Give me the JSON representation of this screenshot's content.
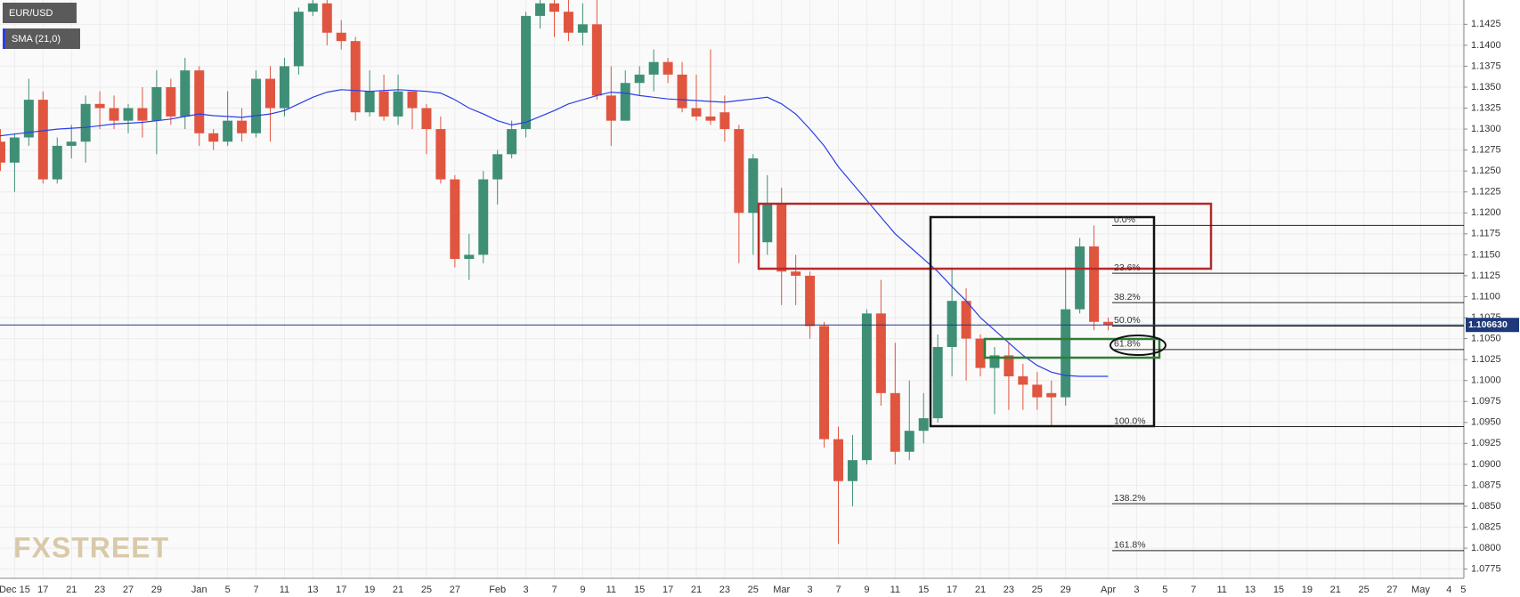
{
  "chart_data": {
    "type": "candlestick",
    "categories": [
      null,
      null,
      "Dec 15",
      null,
      "17",
      null,
      "21",
      null,
      "23",
      null,
      "27",
      null,
      "29",
      null,
      null,
      "Jan",
      null,
      "5",
      null,
      "7",
      null,
      "11",
      null,
      "13",
      null,
      "17",
      null,
      "19",
      null,
      "21",
      null,
      "25",
      null,
      "27",
      null,
      null,
      "Feb",
      null,
      "3",
      null,
      "7",
      null,
      "9",
      null,
      "11",
      null,
      "15",
      null,
      "17",
      null,
      "21",
      null,
      "23",
      null,
      "25",
      null,
      "Mar",
      null,
      "3",
      null,
      "7",
      null,
      "9",
      null,
      "11",
      null,
      "15",
      null,
      "17",
      null,
      "21",
      null,
      "23",
      null,
      "25",
      null,
      "29",
      null,
      null,
      "Apr",
      null,
      "3",
      null,
      "5",
      null,
      "7",
      null,
      "11",
      null,
      "13",
      null,
      "15",
      null,
      "19",
      null,
      "21",
      null,
      "25",
      null,
      "27",
      null,
      "May",
      null,
      "4",
      "5"
    ],
    "series": [
      {
        "name": "EUR/USD",
        "type": "candlestick",
        "up_color": "#3f8f77",
        "down_color": "#e0553f",
        "open": [
          1.13,
          1.1285,
          1.126,
          1.129,
          1.1335,
          1.124,
          1.128,
          1.1285,
          1.133,
          1.1325,
          1.131,
          1.1325,
          1.131,
          1.135,
          1.1315,
          1.137,
          1.1295,
          1.1285,
          1.131,
          1.1295,
          1.136,
          1.1325,
          1.1375,
          1.144,
          1.145,
          1.1415,
          1.1405,
          1.132,
          1.1345,
          1.1315,
          1.1345,
          1.1325,
          1.13,
          1.124,
          1.1145,
          1.115,
          1.124,
          1.127,
          1.13,
          1.1435,
          1.145,
          1.144,
          1.1415,
          1.1425,
          1.134,
          1.131,
          1.1355,
          1.1365,
          1.138,
          1.1365,
          1.1325,
          1.1315,
          1.132,
          1.13,
          1.12,
          1.1165,
          1.121,
          1.113,
          1.1125,
          1.1065,
          1.093,
          1.088,
          1.0905,
          1.108,
          1.0985,
          1.0915,
          1.094,
          1.0955,
          1.104,
          1.1095,
          1.105,
          1.1015,
          1.103,
          1.1005,
          1.0995,
          1.0985,
          1.098,
          1.1085,
          1.116,
          1.107,
          null,
          null,
          null,
          null,
          null,
          null,
          null,
          null,
          null,
          null,
          null,
          null,
          null,
          null,
          null,
          null,
          null,
          null,
          null,
          null,
          null,
          null,
          null,
          null,
          null
        ],
        "high": [
          1.132,
          1.13,
          1.1295,
          1.136,
          1.1345,
          1.129,
          1.1305,
          1.134,
          1.1345,
          1.134,
          1.133,
          1.135,
          1.137,
          1.136,
          1.1385,
          1.1375,
          1.13,
          1.1345,
          1.1325,
          1.137,
          1.1375,
          1.1385,
          1.1445,
          1.1454,
          1.1454,
          1.143,
          1.141,
          1.137,
          1.1365,
          1.1365,
          1.1345,
          1.133,
          1.1315,
          1.1245,
          1.1175,
          1.125,
          1.1275,
          1.131,
          1.144,
          1.1454,
          1.1454,
          1.1454,
          1.145,
          1.1454,
          1.1375,
          1.137,
          1.1375,
          1.1395,
          1.1385,
          1.138,
          1.1365,
          1.1395,
          1.134,
          1.1305,
          1.127,
          1.1245,
          1.123,
          1.115,
          1.113,
          1.107,
          1.0945,
          1.0935,
          1.1085,
          1.112,
          1.1045,
          1.1,
          1.0985,
          1.1055,
          1.1135,
          1.111,
          1.1055,
          1.104,
          1.1045,
          1.102,
          1.101,
          1.1,
          1.1135,
          1.117,
          1.1185,
          1.1075,
          null,
          null,
          null,
          null,
          null,
          null,
          null,
          null,
          null,
          null,
          null,
          null,
          null,
          null,
          null,
          null,
          null,
          null,
          null,
          null,
          null,
          null,
          null,
          null,
          null
        ],
        "low": [
          1.127,
          1.125,
          1.1225,
          1.128,
          1.1235,
          1.1235,
          1.1265,
          1.126,
          1.13,
          1.13,
          1.1295,
          1.129,
          1.127,
          1.1305,
          1.13,
          1.128,
          1.1275,
          1.128,
          1.1285,
          1.129,
          1.1285,
          1.1315,
          1.1365,
          1.1435,
          1.14,
          1.1395,
          1.131,
          1.1315,
          1.131,
          1.1305,
          1.13,
          1.127,
          1.1235,
          1.1135,
          1.112,
          1.114,
          1.121,
          1.1265,
          1.129,
          1.142,
          1.141,
          1.1405,
          1.14,
          1.1335,
          1.128,
          1.131,
          1.134,
          1.1345,
          1.1355,
          1.132,
          1.131,
          1.1305,
          1.1285,
          1.114,
          1.115,
          1.115,
          1.109,
          1.109,
          1.105,
          1.092,
          1.0805,
          1.085,
          1.09,
          1.097,
          1.09,
          1.0905,
          1.0925,
          1.095,
          1.1005,
          1.1,
          1.1005,
          1.096,
          1.0965,
          1.0965,
          1.0965,
          1.0945,
          1.097,
          1.108,
          1.106,
          1.106,
          null,
          null,
          null,
          null,
          null,
          null,
          null,
          null,
          null,
          null,
          null,
          null,
          null,
          null,
          null,
          null,
          null,
          null,
          null,
          null,
          null,
          null,
          null,
          null,
          null
        ],
        "close": [
          1.1285,
          1.126,
          1.129,
          1.1335,
          1.124,
          1.128,
          1.1285,
          1.133,
          1.1325,
          1.131,
          1.1325,
          1.131,
          1.135,
          1.1315,
          1.137,
          1.1295,
          1.1285,
          1.131,
          1.1295,
          1.136,
          1.1325,
          1.1375,
          1.144,
          1.145,
          1.1415,
          1.1405,
          1.132,
          1.1345,
          1.1315,
          1.1345,
          1.1325,
          1.13,
          1.124,
          1.1145,
          1.115,
          1.124,
          1.127,
          1.13,
          1.1435,
          1.145,
          1.144,
          1.1415,
          1.1425,
          1.134,
          1.131,
          1.1355,
          1.1365,
          1.138,
          1.1365,
          1.1325,
          1.1315,
          1.131,
          1.13,
          1.12,
          1.1265,
          1.121,
          1.113,
          1.1125,
          1.1065,
          1.093,
          1.088,
          1.0905,
          1.108,
          1.0985,
          1.0915,
          1.094,
          1.0955,
          1.104,
          1.1095,
          1.105,
          1.1015,
          1.103,
          1.1005,
          1.0995,
          1.098,
          1.098,
          1.1085,
          1.116,
          1.107,
          1.1066,
          null,
          null,
          null,
          null,
          null,
          null,
          null,
          null,
          null,
          null,
          null,
          null,
          null,
          null,
          null,
          null,
          null,
          null,
          null,
          null,
          null,
          null,
          null,
          null,
          null
        ]
      },
      {
        "name": "SMA (21,0)",
        "type": "line",
        "color": "#2a3ee8",
        "values": [
          1.129,
          1.1292,
          1.1294,
          1.1296,
          1.1298,
          1.13,
          1.1301,
          1.1302,
          1.1304,
          1.1306,
          1.1307,
          1.1308,
          1.131,
          1.1312,
          1.1315,
          1.1318,
          1.1316,
          1.1315,
          1.1314,
          1.1316,
          1.1318,
          1.1322,
          1.133,
          1.1338,
          1.1344,
          1.1347,
          1.1346,
          1.1345,
          1.1346,
          1.1347,
          1.1346,
          1.1345,
          1.1343,
          1.1335,
          1.1325,
          1.1318,
          1.131,
          1.1305,
          1.1308,
          1.1315,
          1.1322,
          1.133,
          1.1335,
          1.134,
          1.1344,
          1.1343,
          1.134,
          1.1338,
          1.1336,
          1.1335,
          1.1334,
          1.1333,
          1.1332,
          1.1334,
          1.1336,
          1.1338,
          1.133,
          1.1318,
          1.13,
          1.128,
          1.1255,
          1.1235,
          1.1215,
          1.1195,
          1.1175,
          1.116,
          1.1145,
          1.113,
          1.1112,
          1.1095,
          1.1075,
          1.106,
          1.1045,
          1.103,
          1.1018,
          1.101,
          1.1006,
          1.1005,
          1.1005,
          1.1005,
          null,
          null,
          null,
          null,
          null,
          null,
          null,
          null,
          null,
          null,
          null,
          null,
          null,
          null,
          null,
          null,
          null,
          null,
          null,
          null,
          null,
          null,
          null,
          null,
          null
        ]
      }
    ],
    "ylim": [
      1.0764,
      1.1454
    ],
    "yticks": [
      {
        "value": 1.0775,
        "label": "1.0775"
      },
      {
        "value": 1.08,
        "label": "1.0800"
      },
      {
        "value": 1.0825,
        "label": "1.0825"
      },
      {
        "value": 1.085,
        "label": "1.0850"
      },
      {
        "value": 1.0875,
        "label": "1.0875"
      },
      {
        "value": 1.09,
        "label": "1.0900"
      },
      {
        "value": 1.0925,
        "label": "1.0925"
      },
      {
        "value": 1.095,
        "label": "1.0950"
      },
      {
        "value": 1.0975,
        "label": "1.0975"
      },
      {
        "value": 1.1,
        "label": "1.1000"
      },
      {
        "value": 1.1025,
        "label": "1.1025"
      },
      {
        "value": 1.105,
        "label": "1.1050"
      },
      {
        "value": 1.1075,
        "label": "1.1075"
      },
      {
        "value": 1.11,
        "label": "1.1100"
      },
      {
        "value": 1.1125,
        "label": "1.1125"
      },
      {
        "value": 1.115,
        "label": "1.1150"
      },
      {
        "value": 1.1175,
        "label": "1.1175"
      },
      {
        "value": 1.12,
        "label": "1.1200"
      },
      {
        "value": 1.1225,
        "label": "1.1225"
      },
      {
        "value": 1.125,
        "label": "1.1250"
      },
      {
        "value": 1.1275,
        "label": "1.1275"
      },
      {
        "value": 1.13,
        "label": "1.1300"
      },
      {
        "value": 1.1325,
        "label": "1.1325"
      },
      {
        "value": 1.135,
        "label": "1.1350"
      },
      {
        "value": 1.1375,
        "label": "1.1375"
      },
      {
        "value": 1.14,
        "label": "1.1400"
      },
      {
        "value": 1.1425,
        "label": "1.1425"
      }
    ],
    "grid": true,
    "last_price": {
      "value": 1.10663,
      "label": "1.106630"
    },
    "fibonacci": [
      {
        "value": 1.1185,
        "label": "0.0%"
      },
      {
        "value": 1.1128,
        "label": "23.6%"
      },
      {
        "value": 1.1093,
        "label": "38.2%"
      },
      {
        "value": 1.1065,
        "label": "50.0%"
      },
      {
        "value": 1.1037,
        "label": "61.8%"
      },
      {
        "value": 1.0945,
        "label": "100.0%"
      },
      {
        "value": 1.0853,
        "label": "138.2%"
      },
      {
        "value": 1.0797,
        "label": "161.8%"
      }
    ],
    "watermark": "FXSTREET"
  }
}
